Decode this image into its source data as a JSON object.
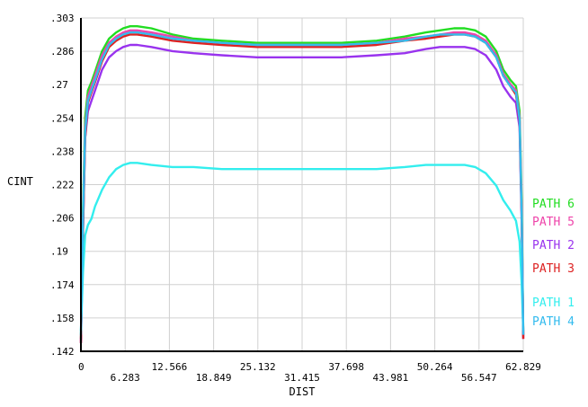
{
  "chart_data": {
    "type": "line",
    "title": "",
    "xlabel": "DIST",
    "ylabel": "CINT",
    "xlim": [
      0,
      62.829
    ],
    "ylim": [
      0.142,
      0.303
    ],
    "x_tick_labels": [
      "0",
      "6.283",
      "12.566",
      "18.849",
      "25.132",
      "31.415",
      "37.698",
      "43.981",
      "50.264",
      "56.547",
      "62.829"
    ],
    "y_tick_labels": [
      ".142",
      ".158",
      ".174",
      ".19",
      ".206",
      ".222",
      ".238",
      ".254",
      ".27",
      ".286",
      ".303"
    ],
    "grid": true,
    "legend_position": "right",
    "x": [
      0,
      0.3,
      0.6,
      1.0,
      1.5,
      2.0,
      3.0,
      4.0,
      5.0,
      6.0,
      7.0,
      8.0,
      10.0,
      13.0,
      16.0,
      20.0,
      25.0,
      31.415,
      37.0,
      42.0,
      46.0,
      49.0,
      51.0,
      53.0,
      54.5,
      56.0,
      57.5,
      59.0,
      60.0,
      61.0,
      61.8,
      62.3,
      62.6,
      62.829
    ],
    "series": [
      {
        "name": "PATH 6",
        "color": "#22dd22",
        "values": [
          0.148,
          0.21,
          0.255,
          0.268,
          0.272,
          0.277,
          0.287,
          0.293,
          0.296,
          0.298,
          0.299,
          0.299,
          0.298,
          0.295,
          0.293,
          0.292,
          0.291,
          0.291,
          0.291,
          0.292,
          0.294,
          0.296,
          0.297,
          0.298,
          0.298,
          0.297,
          0.294,
          0.287,
          0.278,
          0.273,
          0.27,
          0.258,
          0.215,
          0.15
        ]
      },
      {
        "name": "PATH 5",
        "color": "#ee44aa",
        "values": [
          0.147,
          0.205,
          0.25,
          0.265,
          0.27,
          0.275,
          0.285,
          0.291,
          0.294,
          0.296,
          0.297,
          0.297,
          0.296,
          0.294,
          0.292,
          0.291,
          0.29,
          0.29,
          0.29,
          0.291,
          0.293,
          0.294,
          0.295,
          0.296,
          0.296,
          0.295,
          0.292,
          0.285,
          0.276,
          0.271,
          0.268,
          0.255,
          0.21,
          0.149
        ]
      },
      {
        "name": "PATH 2",
        "color": "#9933ee",
        "values": [
          0.146,
          0.2,
          0.245,
          0.258,
          0.263,
          0.268,
          0.278,
          0.284,
          0.287,
          0.289,
          0.29,
          0.29,
          0.289,
          0.287,
          0.286,
          0.285,
          0.284,
          0.284,
          0.284,
          0.285,
          0.286,
          0.288,
          0.289,
          0.289,
          0.289,
          0.288,
          0.285,
          0.278,
          0.27,
          0.265,
          0.262,
          0.25,
          0.205,
          0.148
        ]
      },
      {
        "name": "PATH 3",
        "color": "#dd2222",
        "values": [
          0.146,
          0.2,
          0.245,
          0.262,
          0.267,
          0.272,
          0.282,
          0.289,
          0.292,
          0.294,
          0.295,
          0.295,
          0.294,
          0.292,
          0.291,
          0.29,
          0.289,
          0.289,
          0.289,
          0.29,
          0.292,
          0.293,
          0.294,
          0.295,
          0.295,
          0.294,
          0.291,
          0.284,
          0.275,
          0.27,
          0.266,
          0.253,
          0.208,
          0.148
        ]
      },
      {
        "name": "PATH 1",
        "color": "#33eeee",
        "values": [
          0.152,
          0.18,
          0.198,
          0.203,
          0.206,
          0.212,
          0.22,
          0.226,
          0.23,
          0.232,
          0.233,
          0.233,
          0.232,
          0.231,
          0.231,
          0.23,
          0.23,
          0.23,
          0.23,
          0.23,
          0.231,
          0.232,
          0.232,
          0.232,
          0.232,
          0.231,
          0.228,
          0.222,
          0.215,
          0.21,
          0.205,
          0.195,
          0.175,
          0.152
        ]
      },
      {
        "name": "PATH 4",
        "color": "#33bbee",
        "values": [
          0.15,
          0.205,
          0.248,
          0.263,
          0.268,
          0.273,
          0.283,
          0.29,
          0.293,
          0.295,
          0.296,
          0.296,
          0.295,
          0.293,
          0.292,
          0.291,
          0.29,
          0.29,
          0.29,
          0.291,
          0.292,
          0.294,
          0.295,
          0.295,
          0.295,
          0.294,
          0.291,
          0.284,
          0.275,
          0.27,
          0.267,
          0.254,
          0.209,
          0.15
        ]
      }
    ],
    "legend_order": [
      "PATH 6",
      "PATH 5",
      "PATH 2",
      "PATH 3",
      "PATH 1",
      "PATH 4"
    ]
  }
}
